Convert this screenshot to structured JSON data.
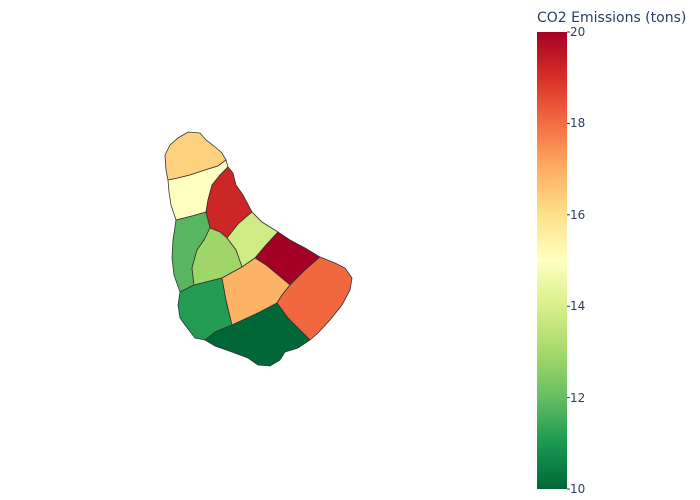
{
  "colorbar": {
    "title": "CO2 Emissions (tons)",
    "min": 10,
    "max": 20,
    "ticks": [
      "20",
      "18",
      "16",
      "14",
      "12",
      "10"
    ],
    "colorscale": [
      "#006837",
      "#1a9850",
      "#66bd63",
      "#a6d96a",
      "#d9ef8b",
      "#ffffbf",
      "#fee08b",
      "#fdae61",
      "#f46d43",
      "#d73027",
      "#a50026"
    ]
  },
  "regions": [
    {
      "id": "north",
      "value": 16.3
    },
    {
      "id": "upper-west",
      "value": 15.0
    },
    {
      "id": "northeast",
      "value": 19.2
    },
    {
      "id": "west-central",
      "value": 11.8
    },
    {
      "id": "central-north",
      "value": 13.8
    },
    {
      "id": "central",
      "value": 12.9
    },
    {
      "id": "east",
      "value": 20.0
    },
    {
      "id": "southwest",
      "value": 11.1
    },
    {
      "id": "south-central",
      "value": 16.9
    },
    {
      "id": "southeast",
      "value": 18.1
    },
    {
      "id": "south",
      "value": 10.0
    }
  ]
}
